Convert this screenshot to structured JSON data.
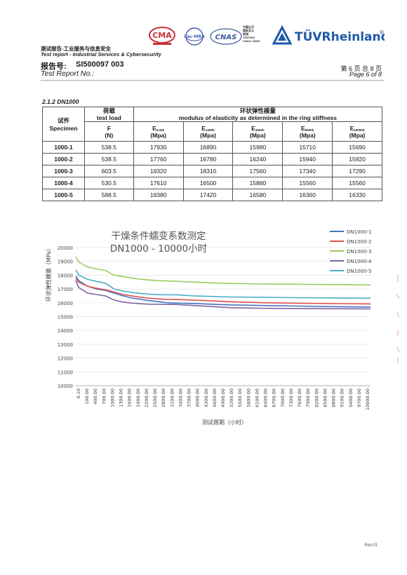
{
  "header": {
    "company_cn": "测试报告-工业服务与信息安全",
    "company_en": "Test report - Industrial Services & Cybersecurity",
    "report_no_label_cn": "报告号:",
    "report_no": "SI500097 003",
    "report_no_label_en": "Test Report No.:",
    "page_cn": "第 6 页  总 8 页",
    "page_en": "Page 6 of 8"
  },
  "logos": {
    "cma_text": "CMA",
    "ilac_text": "ilac-MRA",
    "cnas_text": "CNAS",
    "testing_text": [
      "中国认可",
      "国际互认",
      "检测",
      "TESTING",
      "CNAS L3558"
    ],
    "tuv_text": "TÜVRheinland",
    "tuv_reg": "®"
  },
  "section": {
    "title": "2.1.2 DN1000"
  },
  "table": {
    "col_specimen_cn": "试件",
    "col_specimen_en": "Specimen",
    "col_load_cn": "荷载",
    "col_load_en": "test load",
    "col_mod_cn": "环状弹性模量",
    "col_mod_en": "modulus of elasticity as determined in the ring stiffness",
    "sub_F": "F",
    "sub_E": [
      "E",
      "E",
      "E",
      "E",
      "E"
    ],
    "sub_E_subscripts": [
      "0.05h",
      "1000h",
      "3000h",
      "6000h",
      "10000h"
    ],
    "unit_N": "(N)",
    "unit_Mpa": "(Mpa)",
    "rows": [
      [
        "1000-1",
        "538.5",
        "17930",
        "16890",
        "15980",
        "15710",
        "15690"
      ],
      [
        "1000-2",
        "538.5",
        "17760",
        "16780",
        "16240",
        "15940",
        "15920"
      ],
      [
        "1000-3",
        "603.5",
        "19320",
        "18310",
        "17560",
        "17340",
        "17290"
      ],
      [
        "1000-4",
        "530.5",
        "17610",
        "16500",
        "15880",
        "15560",
        "15560"
      ],
      [
        "1000-5",
        "588.5",
        "18380",
        "17420",
        "16580",
        "16360",
        "16330"
      ]
    ]
  },
  "chart": {
    "title_line1": "干燥条件蠕变系数测定",
    "title_line2": "DN1000 - 10000小时",
    "ylabel": "环状弹性模量（MPa）",
    "xlabel": "测试周期（小时）"
  },
  "chart_data": {
    "type": "line",
    "title": "干燥条件蠕变系数测定 DN1000 - 10000小时",
    "xlabel": "测试周期（小时）",
    "ylabel": "环状弹性模量（MPa）",
    "ylim": [
      10000,
      20000
    ],
    "yticks": [
      "10000",
      "11000",
      "12000",
      "13000",
      "14000",
      "15000",
      "16000",
      "17000",
      "18000",
      "19000",
      "20000"
    ],
    "xticks": [
      "0.10",
      "100.00",
      "400.00",
      "700.00",
      "1000.00",
      "1300.00",
      "1600.00",
      "1900.00",
      "2200.00",
      "2500.00",
      "2800.00",
      "3100.00",
      "3400.00",
      "3700.00",
      "4000.00",
      "4300.00",
      "4600.00",
      "4900.00",
      "5200.00",
      "5500.00",
      "5800.00",
      "6100.00",
      "6400.00",
      "6700.00",
      "7000.00",
      "7300.00",
      "7600.00",
      "7900.00",
      "8200.00",
      "8500.00",
      "8800.00",
      "9100.00",
      "9400.00",
      "9700.00",
      "10000.00"
    ],
    "legend_position": "top-right",
    "series": [
      {
        "name": "DN1000-1",
        "color": "#4472c4",
        "x": [
          0.1,
          100,
          400,
          700,
          1000,
          1300,
          1600,
          1900,
          2200,
          2500,
          2800,
          3100,
          3400,
          4000,
          5200,
          6400,
          7600,
          8800,
          10000
        ],
        "y": [
          17930,
          17600,
          17200,
          17000,
          16900,
          16700,
          16500,
          16350,
          16250,
          16150,
          16080,
          16000,
          15980,
          15950,
          15850,
          15800,
          15760,
          15720,
          15690
        ]
      },
      {
        "name": "DN1000-2",
        "color": "#e0504b",
        "x": [
          0.1,
          100,
          400,
          700,
          1000,
          1300,
          1600,
          1900,
          2200,
          2500,
          2800,
          3100,
          3400,
          4000,
          5200,
          6400,
          7600,
          8800,
          10000
        ],
        "y": [
          17760,
          17500,
          17200,
          17050,
          16950,
          16780,
          16600,
          16500,
          16400,
          16330,
          16280,
          16250,
          16240,
          16200,
          16080,
          16000,
          15970,
          15940,
          15920
        ]
      },
      {
        "name": "DN1000-3",
        "color": "#9bcc62",
        "x": [
          0.1,
          100,
          400,
          700,
          1000,
          1300,
          1600,
          1900,
          2200,
          2500,
          2800,
          3100,
          3400,
          4000,
          5200,
          6400,
          7600,
          8800,
          10000
        ],
        "y": [
          19320,
          18950,
          18600,
          18450,
          18350,
          18000,
          17900,
          17800,
          17700,
          17650,
          17600,
          17580,
          17560,
          17500,
          17400,
          17360,
          17340,
          17320,
          17290
        ]
      },
      {
        "name": "DN1000-4",
        "color": "#8064a2",
        "x": [
          0.1,
          100,
          400,
          700,
          1000,
          1300,
          1600,
          1900,
          2200,
          2500,
          2800,
          3100,
          3400,
          4000,
          5200,
          6400,
          7600,
          8800,
          10000
        ],
        "y": [
          17610,
          17100,
          16700,
          16600,
          16500,
          16200,
          16050,
          15980,
          15930,
          15900,
          15890,
          15880,
          15880,
          15800,
          15650,
          15600,
          15580,
          15570,
          15560
        ]
      },
      {
        "name": "DN1000-5",
        "color": "#4bacc6",
        "x": [
          0.1,
          100,
          400,
          700,
          1000,
          1300,
          1600,
          1900,
          2200,
          2500,
          2800,
          3100,
          3400,
          4000,
          5200,
          6400,
          7600,
          8800,
          10000
        ],
        "y": [
          18380,
          18000,
          17700,
          17550,
          17420,
          17000,
          16850,
          16750,
          16680,
          16620,
          16590,
          16580,
          16580,
          16500,
          16420,
          16390,
          16370,
          16350,
          16330
        ]
      }
    ]
  },
  "footer": {
    "rev": "Rev.01"
  }
}
